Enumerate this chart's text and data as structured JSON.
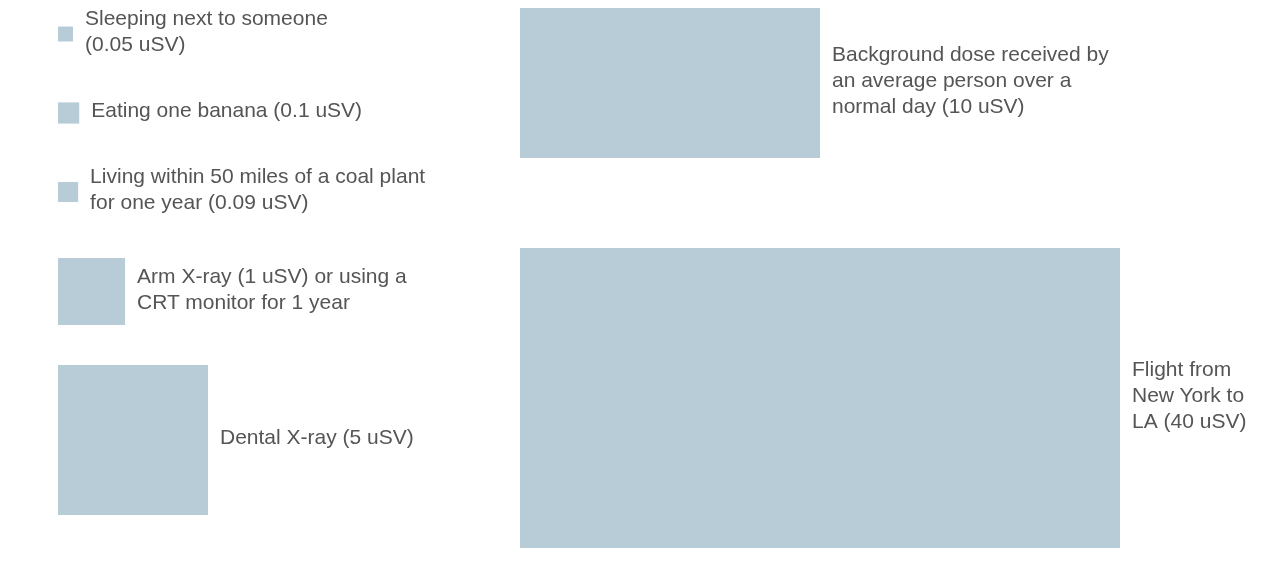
{
  "chart_data": {
    "type": "other",
    "categories": [
      "Sleeping next to someone",
      "Eating one banana",
      "Living within 50 miles of a coal plant for one year",
      "Arm X-ray",
      "Dental X-ray",
      "Background dose received by an average person over a normal day",
      "Flight from New York to LA"
    ],
    "values": [
      0.05,
      0.1,
      0.09,
      1,
      5,
      10,
      40
    ],
    "value_labels": [
      "(0.05 uSV)",
      "(0.1 uSV)",
      "(0.09 uSV)",
      "(1 uSV) or using a CRT monitor for 1 year",
      "(5 uSV)",
      "(10 uSV)",
      "(40 uSV)"
    ],
    "color": "#b8ccd8"
  }
}
